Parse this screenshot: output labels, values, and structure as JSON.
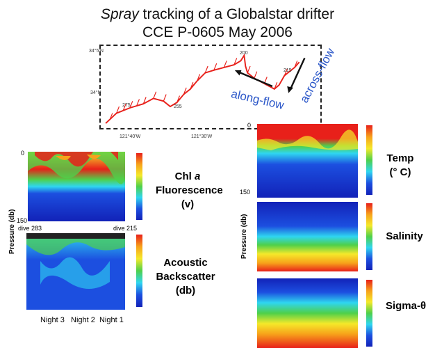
{
  "title": {
    "line1_italic": "Spray",
    "line1_rest": " tracking of a Globalstar drifter",
    "line2": "CCE P-0605  May 2006"
  },
  "map": {
    "lat_labels": [
      "34°5'N",
      "34°N"
    ],
    "lon_labels": [
      "121°40'W",
      "121°30'W"
    ],
    "dive_labels": [
      "200",
      "215",
      "235",
      "255",
      "275",
      "283"
    ],
    "along_flow": "along-flow",
    "across_flow": "across-flow"
  },
  "left_panel": {
    "depth_top": "0",
    "depth_bottom": "150",
    "y_axis_label": "Pressure (db)",
    "dive_left": "dive 283",
    "dive_right": "dive 215",
    "chl_label_line1": "Chl ",
    "chl_label_italic": "a",
    "chl_label_line2": "Fluorescence",
    "chl_label_line3": "(v)",
    "acoustic_line1": "Acoustic",
    "acoustic_line2": "Backscatter",
    "acoustic_line3": "(db)",
    "nights": "Night 3   Night 2  Night 1"
  },
  "right_panel": {
    "depth_top": "0",
    "depth_bottom": "150",
    "y_axis_label": "Pressure (db)",
    "temp_line1": "Temp",
    "temp_line2": "(° C)",
    "salinity": "Salinity",
    "sigma": "Sigma-θ"
  },
  "colors": {
    "red": "#e8201a",
    "orange": "#f7a21a",
    "yellow": "#f5e92a",
    "green": "#4fd04a",
    "cyan": "#2fd6f0",
    "blue": "#1c4fe0",
    "navy": "#1222b8",
    "accent_blue": "#2a56c8"
  }
}
